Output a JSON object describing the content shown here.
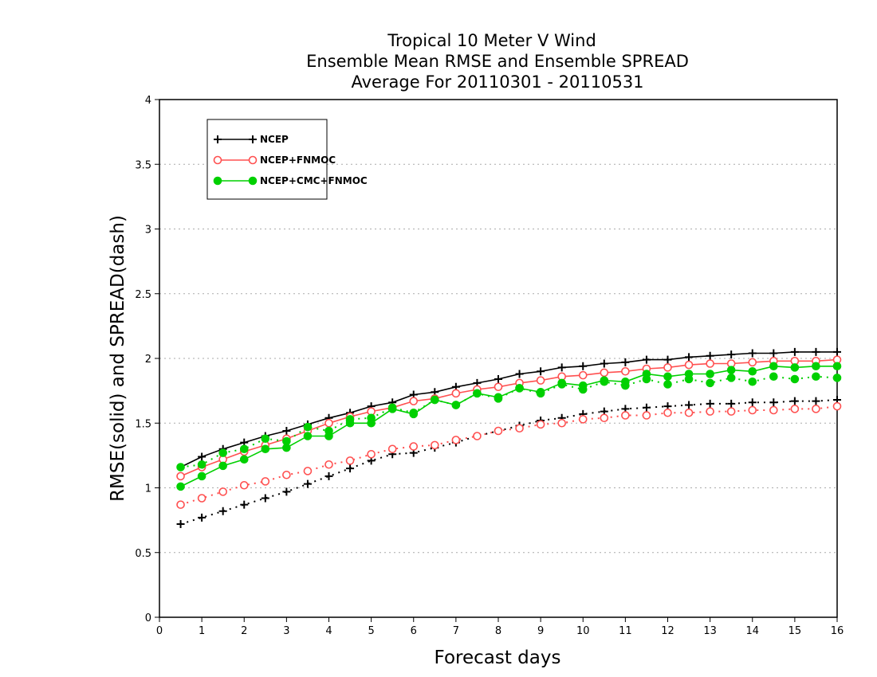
{
  "chart_data": {
    "type": "line",
    "title": [
      "Tropical 10 Meter V Wind",
      "Ensemble Mean RMSE and Ensemble SPREAD",
      "Average For 20110301 - 20110531"
    ],
    "xlabel": "Forecast days",
    "ylabel": "RMSE(solid) and SPREAD(dash)",
    "xlim": [
      0,
      16
    ],
    "ylim": [
      0,
      4
    ],
    "xticks": [
      0,
      1,
      2,
      3,
      4,
      5,
      6,
      7,
      8,
      9,
      10,
      11,
      12,
      13,
      14,
      15,
      16
    ],
    "yticks": [
      0,
      0.5,
      1,
      1.5,
      2,
      2.5,
      3,
      3.5,
      4
    ],
    "ytick_labels": [
      "0",
      "0.5",
      "1",
      "1.5",
      "2",
      "2.5",
      "3",
      "3.5",
      "4"
    ],
    "grid": "horizontal-dotted",
    "legend_position": "top-left",
    "x": [
      0.5,
      1,
      1.5,
      2,
      2.5,
      3,
      3.5,
      4,
      4.5,
      5,
      5.5,
      6,
      6.5,
      7,
      7.5,
      8,
      8.5,
      9,
      9.5,
      10,
      10.5,
      11,
      11.5,
      12,
      12.5,
      13,
      13.5,
      14,
      14.5,
      15,
      15.5,
      16
    ],
    "series": [
      {
        "name": "NCEP",
        "color": "#000000",
        "marker": "plus",
        "rmse": [
          1.16,
          1.24,
          1.3,
          1.35,
          1.4,
          1.44,
          1.49,
          1.54,
          1.58,
          1.63,
          1.66,
          1.72,
          1.74,
          1.78,
          1.81,
          1.84,
          1.88,
          1.9,
          1.93,
          1.94,
          1.96,
          1.97,
          1.99,
          1.99,
          2.01,
          2.02,
          2.03,
          2.04,
          2.04,
          2.05,
          2.05,
          2.05
        ],
        "spread": [
          0.72,
          0.77,
          0.82,
          0.87,
          0.92,
          0.97,
          1.03,
          1.09,
          1.15,
          1.21,
          1.26,
          1.27,
          1.31,
          1.35,
          1.4,
          1.44,
          1.48,
          1.52,
          1.54,
          1.57,
          1.59,
          1.61,
          1.62,
          1.63,
          1.64,
          1.65,
          1.65,
          1.66,
          1.66,
          1.67,
          1.67,
          1.68
        ]
      },
      {
        "name": "NCEP+FNMOC",
        "color": "#ff5050",
        "marker": "open-circle",
        "rmse": [
          1.09,
          1.16,
          1.22,
          1.28,
          1.33,
          1.38,
          1.44,
          1.5,
          1.55,
          1.59,
          1.62,
          1.67,
          1.69,
          1.73,
          1.76,
          1.78,
          1.81,
          1.83,
          1.86,
          1.87,
          1.89,
          1.9,
          1.92,
          1.93,
          1.95,
          1.96,
          1.96,
          1.97,
          1.98,
          1.98,
          1.98,
          1.99
        ],
        "spread": [
          0.87,
          0.92,
          0.97,
          1.02,
          1.05,
          1.1,
          1.13,
          1.18,
          1.21,
          1.26,
          1.3,
          1.32,
          1.33,
          1.37,
          1.4,
          1.44,
          1.46,
          1.49,
          1.5,
          1.53,
          1.54,
          1.56,
          1.56,
          1.58,
          1.58,
          1.59,
          1.59,
          1.6,
          1.6,
          1.61,
          1.61,
          1.63
        ]
      },
      {
        "name": "NCEP+CMC+FNMOC",
        "color": "#00d000",
        "marker": "filled-circle",
        "rmse": [
          1.01,
          1.09,
          1.17,
          1.22,
          1.3,
          1.31,
          1.4,
          1.4,
          1.5,
          1.5,
          1.61,
          1.57,
          1.68,
          1.64,
          1.73,
          1.7,
          1.77,
          1.74,
          1.81,
          1.79,
          1.83,
          1.82,
          1.88,
          1.86,
          1.88,
          1.88,
          1.91,
          1.9,
          1.94,
          1.93,
          1.94,
          1.94
        ],
        "spread": [
          1.16,
          1.18,
          1.27,
          1.3,
          1.38,
          1.36,
          1.47,
          1.44,
          1.53,
          1.54,
          1.62,
          1.58,
          1.68,
          1.64,
          1.73,
          1.69,
          1.77,
          1.73,
          1.8,
          1.76,
          1.82,
          1.79,
          1.84,
          1.8,
          1.84,
          1.81,
          1.85,
          1.82,
          1.86,
          1.84,
          1.86,
          1.85
        ]
      }
    ]
  }
}
